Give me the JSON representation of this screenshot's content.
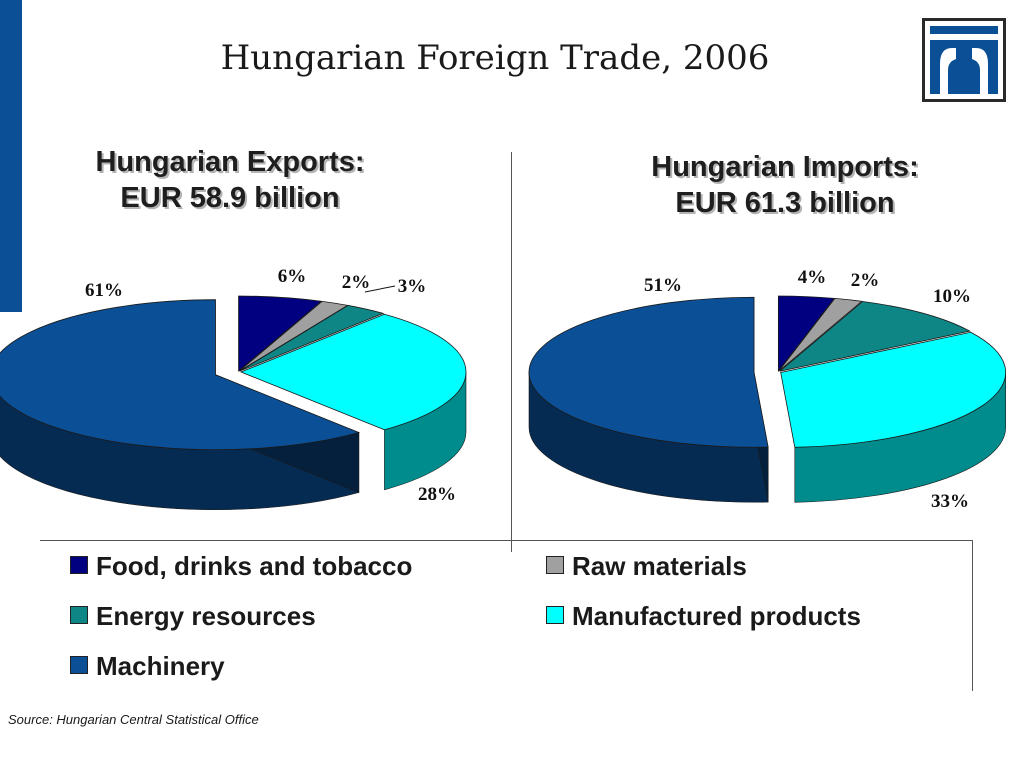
{
  "title": "Hungarian Foreign Trade, 2006",
  "source": "Source: Hungarian Central Statistical Office",
  "colors": {
    "food": "#000080",
    "raw": "#a0a0a0",
    "energy": "#0f8686",
    "manufactured": "#00ffff",
    "machinery": "#0b4f96"
  },
  "legend": [
    {
      "key": "food",
      "label": "Food, drinks and tobacco"
    },
    {
      "key": "raw",
      "label": "Raw materials"
    },
    {
      "key": "energy",
      "label": "Energy resources"
    },
    {
      "key": "manufactured",
      "label": "Manufactured products"
    },
    {
      "key": "machinery",
      "label": "Machinery"
    }
  ],
  "chart_data": [
    {
      "type": "pie",
      "title_line1": "Hungarian Exports:",
      "title_line2": "EUR 58.9 billion",
      "categories": [
        "Food, drinks and tobacco",
        "Raw materials",
        "Energy resources",
        "Manufactured products",
        "Machinery"
      ],
      "values": [
        6,
        2,
        3,
        28,
        61
      ],
      "labels": [
        "6%",
        "2%",
        "3%",
        "28%",
        "61%"
      ]
    },
    {
      "type": "pie",
      "title_line1": "Hungarian Imports:",
      "title_line2": "EUR 61.3 billion",
      "categories": [
        "Food, drinks and tobacco",
        "Raw materials",
        "Energy resources",
        "Manufactured products",
        "Machinery"
      ],
      "values": [
        4,
        2,
        10,
        33,
        51
      ],
      "labels": [
        "4%",
        "2%",
        "10%",
        "33%",
        "51%"
      ]
    }
  ]
}
